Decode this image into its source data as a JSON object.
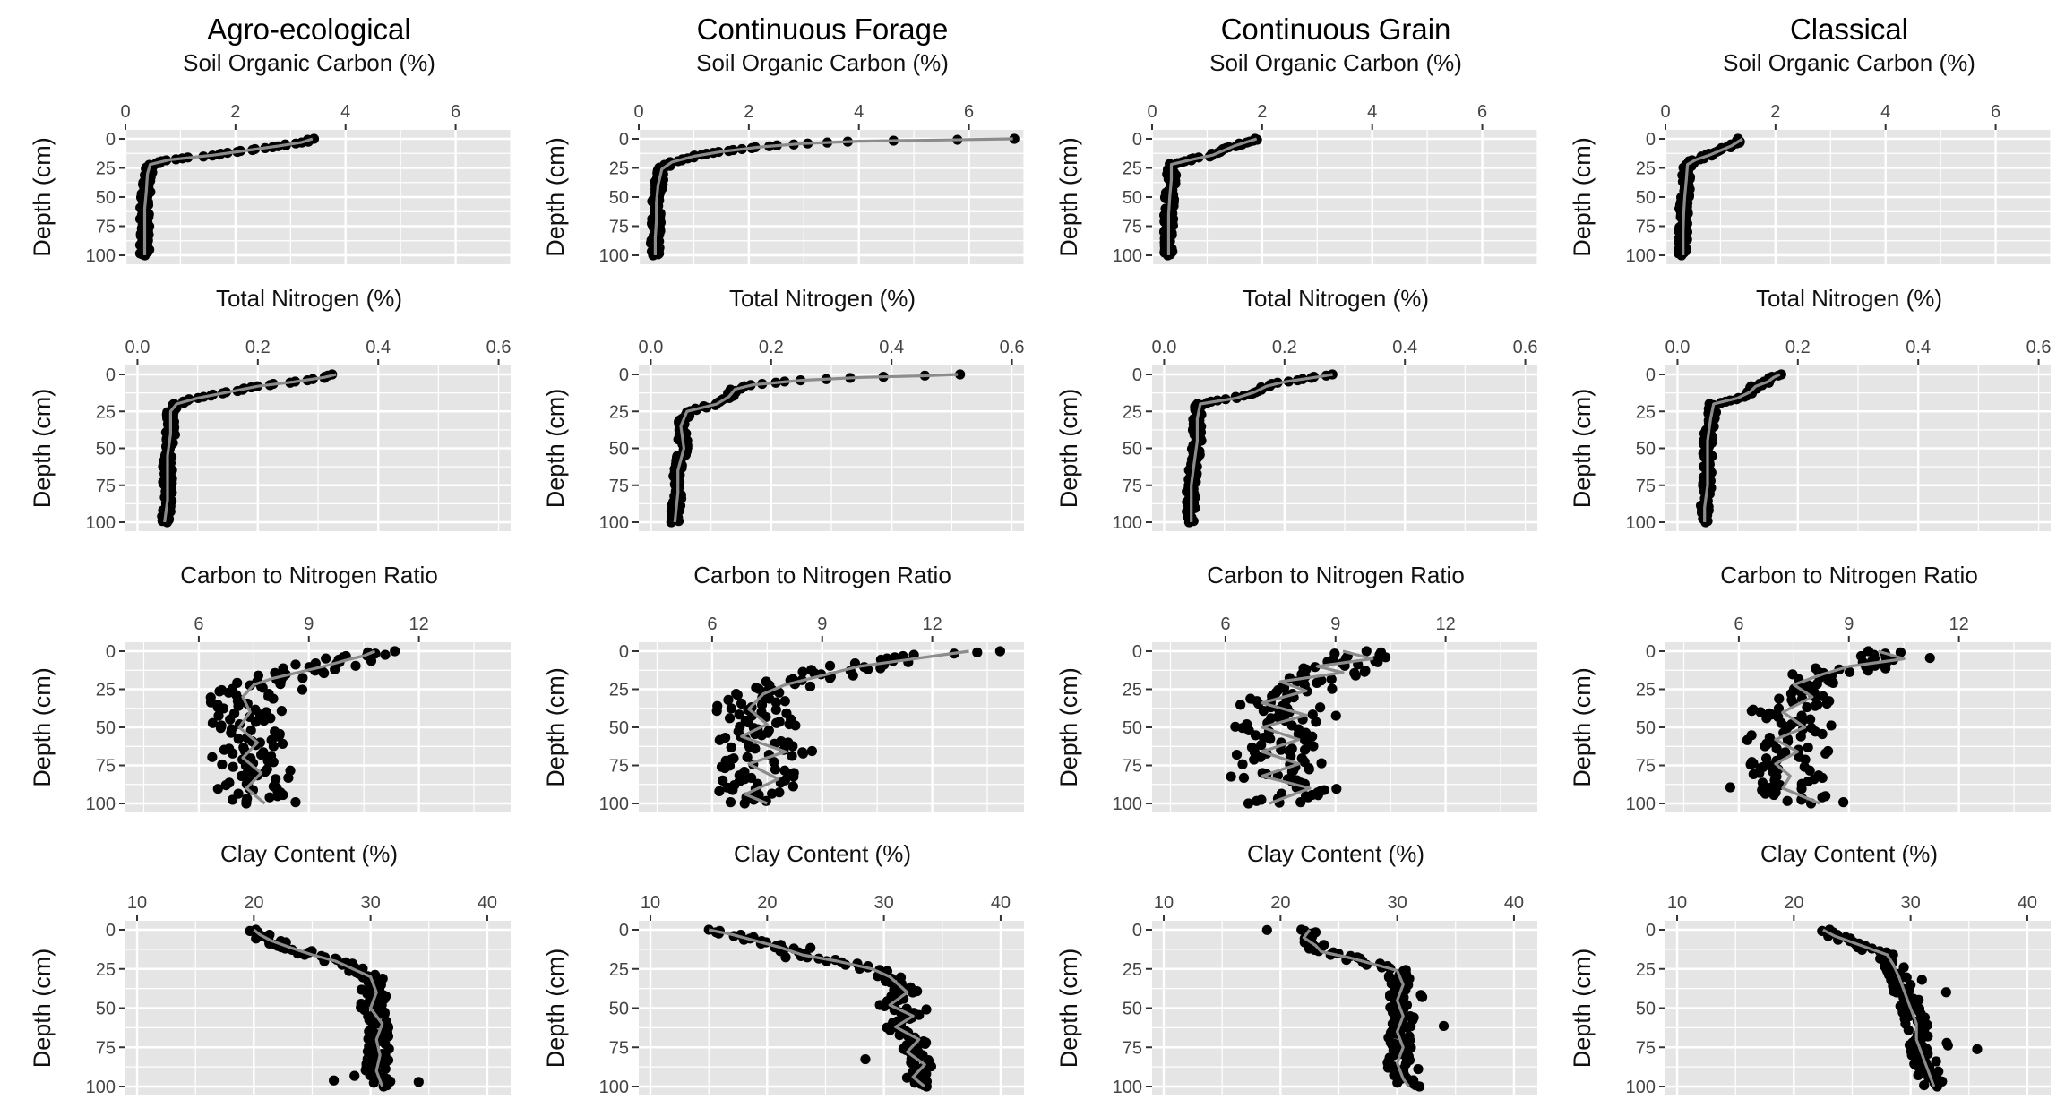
{
  "columns": [
    "Agro-ecological",
    "Continuous Forage",
    "Continuous Grain",
    "Classical"
  ],
  "y_axis": {
    "label": "Depth (cm)",
    "ticks": [
      0,
      25,
      50,
      75,
      100
    ],
    "range": [
      0,
      100
    ],
    "inverted": true
  },
  "style": {
    "panel_bg": "#e5e5e5",
    "grid": "#ffffff",
    "point_color": "#000000",
    "line_color": "#8c8c8c"
  },
  "chart_data": [
    {
      "type": "scatter",
      "row_title": "Soil Organic Carbon (%)",
      "xlim": [
        0,
        7
      ],
      "xticks": [
        0,
        2,
        4,
        6
      ],
      "tick_format": "int",
      "panels": [
        {
          "column": "Agro-ecological",
          "profile": [
            [
              3.4,
              0
            ],
            [
              3.2,
              3
            ],
            [
              2.8,
              6
            ],
            [
              2.2,
              10
            ],
            [
              1.6,
              14
            ],
            [
              0.8,
              18
            ],
            [
              0.45,
              22
            ],
            [
              0.4,
              30
            ],
            [
              0.38,
              45
            ],
            [
              0.35,
              60
            ],
            [
              0.35,
              75
            ],
            [
              0.35,
              90
            ],
            [
              0.35,
              100
            ]
          ]
        },
        {
          "column": "Continuous Forage",
          "profile": [
            [
              6.8,
              0
            ],
            [
              5.5,
              1
            ],
            [
              4.0,
              2
            ],
            [
              3.0,
              4
            ],
            [
              2.2,
              7
            ],
            [
              1.5,
              11
            ],
            [
              1.0,
              15
            ],
            [
              0.6,
              20
            ],
            [
              0.42,
              26
            ],
            [
              0.35,
              40
            ],
            [
              0.32,
              55
            ],
            [
              0.32,
              70
            ],
            [
              0.3,
              85
            ],
            [
              0.3,
              100
            ]
          ]
        },
        {
          "column": "Continuous Grain",
          "profile": [
            [
              1.9,
              0
            ],
            [
              1.7,
              3
            ],
            [
              1.5,
              6
            ],
            [
              1.3,
              10
            ],
            [
              1.1,
              14
            ],
            [
              0.7,
              18
            ],
            [
              0.35,
              22
            ],
            [
              0.35,
              35
            ],
            [
              0.32,
              50
            ],
            [
              0.3,
              65
            ],
            [
              0.3,
              80
            ],
            [
              0.3,
              92
            ],
            [
              0.3,
              100
            ]
          ]
        },
        {
          "column": "Classical",
          "profile": [
            [
              1.4,
              0
            ],
            [
              1.3,
              3
            ],
            [
              1.2,
              6
            ],
            [
              1.0,
              10
            ],
            [
              0.8,
              14
            ],
            [
              0.55,
              18
            ],
            [
              0.4,
              22
            ],
            [
              0.38,
              35
            ],
            [
              0.35,
              50
            ],
            [
              0.33,
              65
            ],
            [
              0.32,
              80
            ],
            [
              0.32,
              92
            ],
            [
              0.32,
              100
            ]
          ]
        }
      ]
    },
    {
      "type": "scatter",
      "row_title": "Total Nitrogen (%)",
      "xlim": [
        -0.02,
        0.62
      ],
      "xticks": [
        0.0,
        0.2,
        0.4,
        0.6
      ],
      "tick_format": "1dp",
      "panels": [
        {
          "column": "Agro-ecological",
          "profile": [
            [
              0.33,
              0
            ],
            [
              0.31,
              2
            ],
            [
              0.26,
              5
            ],
            [
              0.2,
              8
            ],
            [
              0.15,
              12
            ],
            [
              0.1,
              16
            ],
            [
              0.065,
              20
            ],
            [
              0.055,
              25
            ],
            [
              0.055,
              40
            ],
            [
              0.05,
              55
            ],
            [
              0.05,
              70
            ],
            [
              0.05,
              85
            ],
            [
              0.045,
              100
            ]
          ]
        },
        {
          "column": "Continuous Forage",
          "profile": [
            [
              0.51,
              0
            ],
            [
              0.45,
              1
            ],
            [
              0.35,
              2
            ],
            [
              0.25,
              4
            ],
            [
              0.17,
              7
            ],
            [
              0.14,
              10
            ],
            [
              0.13,
              15
            ],
            [
              0.11,
              20
            ],
            [
              0.06,
              25
            ],
            [
              0.05,
              35
            ],
            [
              0.055,
              50
            ],
            [
              0.045,
              65
            ],
            [
              0.045,
              80
            ],
            [
              0.04,
              100
            ]
          ]
        },
        {
          "column": "Continuous Grain",
          "profile": [
            [
              0.28,
              0
            ],
            [
              0.25,
              2
            ],
            [
              0.2,
              5
            ],
            [
              0.17,
              8
            ],
            [
              0.15,
              12
            ],
            [
              0.12,
              16
            ],
            [
              0.06,
              20
            ],
            [
              0.055,
              30
            ],
            [
              0.055,
              45
            ],
            [
              0.05,
              60
            ],
            [
              0.045,
              75
            ],
            [
              0.045,
              90
            ],
            [
              0.045,
              100
            ]
          ]
        },
        {
          "column": "Classical",
          "profile": [
            [
              0.17,
              0
            ],
            [
              0.16,
              2
            ],
            [
              0.15,
              5
            ],
            [
              0.13,
              8
            ],
            [
              0.12,
              12
            ],
            [
              0.1,
              16
            ],
            [
              0.06,
              20
            ],
            [
              0.055,
              30
            ],
            [
              0.05,
              45
            ],
            [
              0.05,
              60
            ],
            [
              0.05,
              75
            ],
            [
              0.045,
              90
            ],
            [
              0.045,
              100
            ]
          ]
        }
      ]
    },
    {
      "type": "scatter",
      "row_title": "Carbon to Nitrogen Ratio",
      "xlim": [
        4,
        14.5
      ],
      "xticks": [
        6,
        9,
        12
      ],
      "tick_format": "int",
      "panels": [
        {
          "column": "Agro-ecological",
          "profile": [
            [
              10.8,
              0
            ],
            [
              10.5,
              3
            ],
            [
              10.0,
              6
            ],
            [
              9.4,
              10
            ],
            [
              8.7,
              14
            ],
            [
              8.0,
              18
            ],
            [
              7.5,
              22
            ],
            [
              7.2,
              30
            ],
            [
              7.4,
              40
            ],
            [
              7.1,
              50
            ],
            [
              7.6,
              60
            ],
            [
              7.2,
              70
            ],
            [
              7.7,
              80
            ],
            [
              7.3,
              90
            ],
            [
              7.8,
              100
            ]
          ]
        },
        {
          "column": "Continuous Forage",
          "profile": [
            [
              13.0,
              0
            ],
            [
              11.5,
              5
            ],
            [
              10.0,
              10
            ],
            [
              9.0,
              16
            ],
            [
              8.0,
              22
            ],
            [
              7.4,
              28
            ],
            [
              7.0,
              38
            ],
            [
              7.5,
              48
            ],
            [
              6.8,
              56
            ],
            [
              8.0,
              66
            ],
            [
              7.0,
              74
            ],
            [
              7.8,
              84
            ],
            [
              6.9,
              94
            ],
            [
              7.5,
              100
            ]
          ]
        },
        {
          "column": "Continuous Grain",
          "profile": [
            [
              9.2,
              0
            ],
            [
              10.0,
              5
            ],
            [
              8.5,
              10
            ],
            [
              9.2,
              14
            ],
            [
              7.5,
              20
            ],
            [
              8.2,
              26
            ],
            [
              7.0,
              34
            ],
            [
              8.2,
              42
            ],
            [
              7.0,
              50
            ],
            [
              8.0,
              58
            ],
            [
              7.0,
              66
            ],
            [
              8.0,
              74
            ],
            [
              7.0,
              82
            ],
            [
              8.3,
              90
            ],
            [
              7.2,
              100
            ]
          ]
        },
        {
          "column": "Classical",
          "profile": [
            [
              9.8,
              0
            ],
            [
              10.5,
              5
            ],
            [
              9.0,
              10
            ],
            [
              8.3,
              15
            ],
            [
              7.5,
              22
            ],
            [
              8.0,
              30
            ],
            [
              7.2,
              40
            ],
            [
              7.8,
              50
            ],
            [
              7.0,
              58
            ],
            [
              7.6,
              66
            ],
            [
              7.0,
              74
            ],
            [
              7.4,
              82
            ],
            [
              7.2,
              90
            ],
            [
              8.2,
              100
            ]
          ]
        }
      ]
    },
    {
      "type": "scatter",
      "row_title": "Clay Content (%)",
      "xlim": [
        9,
        42
      ],
      "xticks": [
        10,
        20,
        30,
        40
      ],
      "tick_format": "int",
      "panels": [
        {
          "column": "Agro-ecological",
          "profile": [
            [
              20.0,
              0
            ],
            [
              20.5,
              3
            ],
            [
              21.5,
              7
            ],
            [
              23.0,
              11
            ],
            [
              25.0,
              16
            ],
            [
              27.0,
              20
            ],
            [
              28.5,
              25
            ],
            [
              30.0,
              30
            ],
            [
              30.5,
              40
            ],
            [
              30.0,
              50
            ],
            [
              31.0,
              60
            ],
            [
              30.5,
              70
            ],
            [
              30.8,
              80
            ],
            [
              30.5,
              90
            ],
            [
              31.0,
              100
            ]
          ]
        },
        {
          "column": "Continuous Forage",
          "profile": [
            [
              15.0,
              0
            ],
            [
              17.0,
              3
            ],
            [
              19.0,
              7
            ],
            [
              21.0,
              11
            ],
            [
              23.0,
              16
            ],
            [
              26.0,
              20
            ],
            [
              29.0,
              25
            ],
            [
              30.5,
              30
            ],
            [
              32.0,
              40
            ],
            [
              30.5,
              48
            ],
            [
              32.5,
              55
            ],
            [
              31.0,
              62
            ],
            [
              33.0,
              70
            ],
            [
              32.0,
              78
            ],
            [
              33.5,
              86
            ],
            [
              32.5,
              94
            ],
            [
              33.5,
              100
            ]
          ]
        },
        {
          "column": "Continuous Grain",
          "profile": [
            [
              22.5,
              0
            ],
            [
              22.0,
              5
            ],
            [
              23.0,
              10
            ],
            [
              23.5,
              14
            ],
            [
              26.0,
              18
            ],
            [
              28.0,
              22
            ],
            [
              30.0,
              26
            ],
            [
              30.5,
              35
            ],
            [
              30.0,
              45
            ],
            [
              30.5,
              55
            ],
            [
              30.0,
              65
            ],
            [
              30.5,
              75
            ],
            [
              30.0,
              85
            ],
            [
              30.5,
              95
            ],
            [
              31.0,
              100
            ]
          ]
        },
        {
          "column": "Classical",
          "profile": [
            [
              22.5,
              0
            ],
            [
              23.5,
              4
            ],
            [
              25.0,
              8
            ],
            [
              26.5,
              12
            ],
            [
              28.0,
              16
            ],
            [
              28.5,
              22
            ],
            [
              29.0,
              30
            ],
            [
              29.5,
              40
            ],
            [
              30.0,
              50
            ],
            [
              30.5,
              60
            ],
            [
              30.5,
              70
            ],
            [
              31.0,
              80
            ],
            [
              31.5,
              90
            ],
            [
              32.0,
              100
            ]
          ]
        }
      ]
    }
  ]
}
